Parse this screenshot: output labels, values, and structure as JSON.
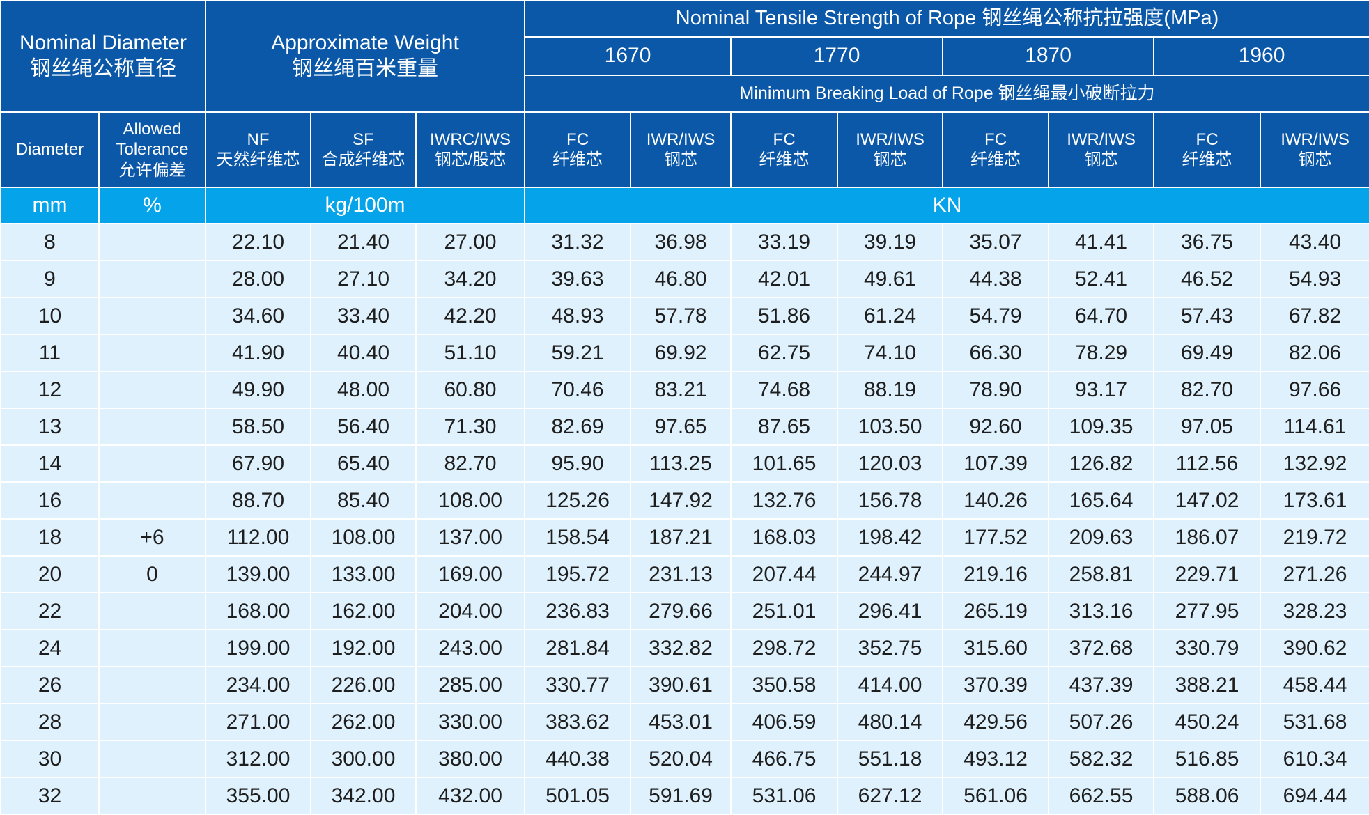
{
  "header": {
    "nominal_diameter_en": "Nominal Diameter",
    "nominal_diameter_cn": "钢丝绳公称直径",
    "approx_weight_en": "Approximate Weight",
    "approx_weight_cn": "钢丝绳百米重量",
    "tensile_strength": "Nominal Tensile Strength of Rope 钢丝绳公称抗拉强度(MPa)",
    "grades": [
      "1670",
      "1770",
      "1870",
      "1960"
    ],
    "min_breaking_load": "Minimum Breaking Load of Rope 钢丝绳最小破断拉力",
    "diameter": "Diameter",
    "tolerance_l1": "Allowed",
    "tolerance_l2": "Tolerance",
    "tolerance_l3": "允许偏差",
    "nf_en": "NF",
    "nf_cn": "天然纤维芯",
    "sf_en": "SF",
    "sf_cn": "合成纤维芯",
    "iwrc_en": "IWRC/IWS",
    "iwrc_cn": "钢芯/股芯",
    "fc_en": "FC",
    "fc_cn": "纤维芯",
    "iwr_en": "IWR/IWS",
    "iwr_cn": "钢芯"
  },
  "units": {
    "mm": "mm",
    "percent": "%",
    "weight": "kg/100m",
    "load": "KN"
  },
  "rows": [
    [
      "8",
      "",
      "22.10",
      "21.40",
      "27.00",
      "31.32",
      "36.98",
      "33.19",
      "39.19",
      "35.07",
      "41.41",
      "36.75",
      "43.40"
    ],
    [
      "9",
      "",
      "28.00",
      "27.10",
      "34.20",
      "39.63",
      "46.80",
      "42.01",
      "49.61",
      "44.38",
      "52.41",
      "46.52",
      "54.93"
    ],
    [
      "10",
      "",
      "34.60",
      "33.40",
      "42.20",
      "48.93",
      "57.78",
      "51.86",
      "61.24",
      "54.79",
      "64.70",
      "57.43",
      "67.82"
    ],
    [
      "11",
      "",
      "41.90",
      "40.40",
      "51.10",
      "59.21",
      "69.92",
      "62.75",
      "74.10",
      "66.30",
      "78.29",
      "69.49",
      "82.06"
    ],
    [
      "12",
      "",
      "49.90",
      "48.00",
      "60.80",
      "70.46",
      "83.21",
      "74.68",
      "88.19",
      "78.90",
      "93.17",
      "82.70",
      "97.66"
    ],
    [
      "13",
      "",
      "58.50",
      "56.40",
      "71.30",
      "82.69",
      "97.65",
      "87.65",
      "103.50",
      "92.60",
      "109.35",
      "97.05",
      "114.61"
    ],
    [
      "14",
      "",
      "67.90",
      "65.40",
      "82.70",
      "95.90",
      "113.25",
      "101.65",
      "120.03",
      "107.39",
      "126.82",
      "112.56",
      "132.92"
    ],
    [
      "16",
      "",
      "88.70",
      "85.40",
      "108.00",
      "125.26",
      "147.92",
      "132.76",
      "156.78",
      "140.26",
      "165.64",
      "147.02",
      "173.61"
    ],
    [
      "18",
      "+6",
      "112.00",
      "108.00",
      "137.00",
      "158.54",
      "187.21",
      "168.03",
      "198.42",
      "177.52",
      "209.63",
      "186.07",
      "219.72"
    ],
    [
      "20",
      "0",
      "139.00",
      "133.00",
      "169.00",
      "195.72",
      "231.13",
      "207.44",
      "244.97",
      "219.16",
      "258.81",
      "229.71",
      "271.26"
    ],
    [
      "22",
      "",
      "168.00",
      "162.00",
      "204.00",
      "236.83",
      "279.66",
      "251.01",
      "296.41",
      "265.19",
      "313.16",
      "277.95",
      "328.23"
    ],
    [
      "24",
      "",
      "199.00",
      "192.00",
      "243.00",
      "281.84",
      "332.82",
      "298.72",
      "352.75",
      "315.60",
      "372.68",
      "330.79",
      "390.62"
    ],
    [
      "26",
      "",
      "234.00",
      "226.00",
      "285.00",
      "330.77",
      "390.61",
      "350.58",
      "414.00",
      "370.39",
      "437.39",
      "388.21",
      "458.44"
    ],
    [
      "28",
      "",
      "271.00",
      "262.00",
      "330.00",
      "383.62",
      "453.01",
      "406.59",
      "480.14",
      "429.56",
      "507.26",
      "450.24",
      "531.68"
    ],
    [
      "30",
      "",
      "312.00",
      "300.00",
      "380.00",
      "440.38",
      "520.04",
      "466.75",
      "551.18",
      "493.12",
      "582.32",
      "516.85",
      "610.34"
    ],
    [
      "32",
      "",
      "355.00",
      "342.00",
      "432.00",
      "501.05",
      "591.69",
      "531.06",
      "627.12",
      "561.06",
      "662.55",
      "588.06",
      "694.44"
    ]
  ]
}
